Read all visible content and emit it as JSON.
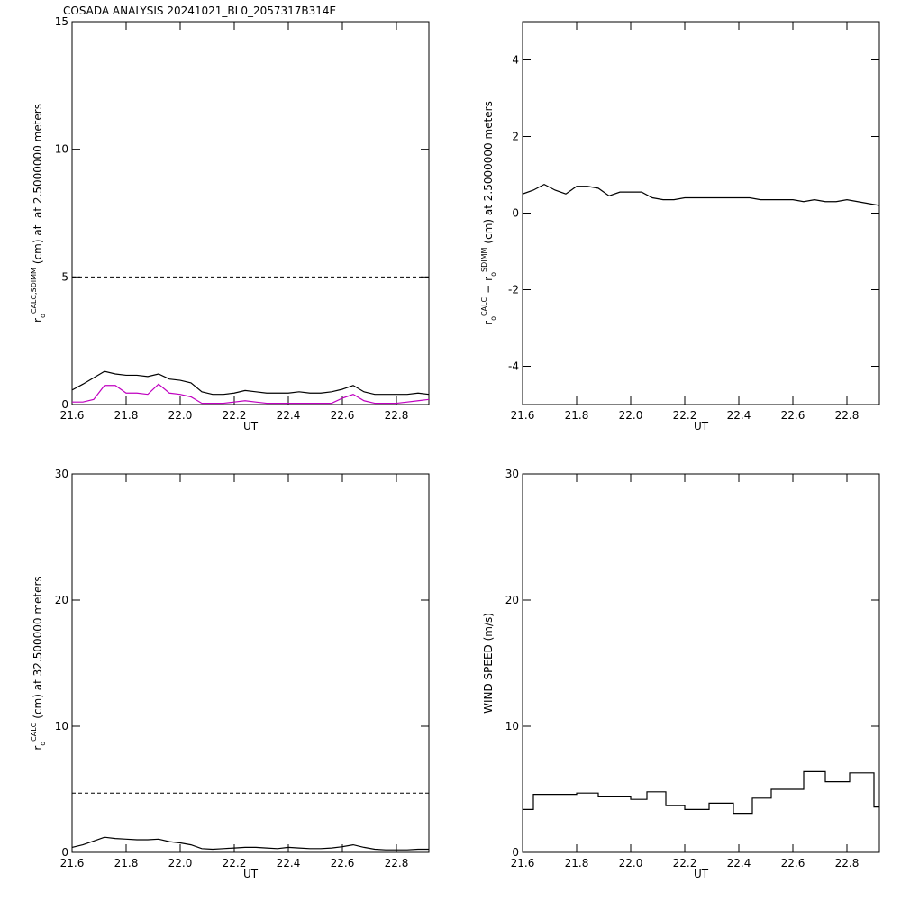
{
  "chart_data": [
    {
      "type": "line",
      "title": "COSADA ANALYSIS 20241021_BL0_2057317B314E",
      "xlabel": "UT",
      "ylabel": [
        {
          "text": "r"
        },
        {
          "text": "o",
          "pos": "sub"
        },
        {
          "text": "CALC,SDIMM",
          "pos": "sup"
        },
        {
          "text": "(cm) at  at 2.5000000 meters"
        }
      ],
      "x": [
        21.6,
        21.64,
        21.68,
        21.72,
        21.76,
        21.8,
        21.84,
        21.88,
        21.92,
        21.96,
        22.0,
        22.04,
        22.08,
        22.12,
        22.16,
        22.2,
        22.24,
        22.28,
        22.32,
        22.36,
        22.4,
        22.44,
        22.48,
        22.52,
        22.56,
        22.6,
        22.64,
        22.68,
        22.72,
        22.76,
        22.8,
        22.84,
        22.88,
        22.92
      ],
      "series": [
        {
          "color": "#000000",
          "values": [
            0.57,
            0.8,
            1.05,
            1.3,
            1.2,
            1.15,
            1.15,
            1.1,
            1.2,
            1.0,
            0.95,
            0.85,
            0.5,
            0.4,
            0.4,
            0.45,
            0.55,
            0.5,
            0.45,
            0.45,
            0.45,
            0.5,
            0.45,
            0.45,
            0.5,
            0.6,
            0.75,
            0.5,
            0.4,
            0.4,
            0.4,
            0.4,
            0.45,
            0.4
          ]
        },
        {
          "color": "#c000c0",
          "values": [
            0.1,
            0.1,
            0.2,
            0.75,
            0.75,
            0.45,
            0.45,
            0.4,
            0.8,
            0.45,
            0.4,
            0.3,
            0.05,
            0.05,
            0.05,
            0.1,
            0.15,
            0.1,
            0.05,
            0.05,
            0.05,
            0.05,
            0.05,
            0.05,
            0.05,
            0.25,
            0.4,
            0.15,
            0.05,
            0.05,
            0.05,
            0.1,
            0.15,
            0.2
          ]
        }
      ],
      "reference_line": 5,
      "xlim": [
        21.6,
        22.92
      ],
      "xticks": [
        21.6,
        21.8,
        {
          "value": 22,
          "label": "22.0"
        },
        22.2,
        22.4,
        22.6,
        22.8
      ],
      "ylim": [
        0,
        15
      ],
      "yticks": [
        0,
        5,
        10,
        15
      ]
    },
    {
      "type": "line",
      "xlabel": "UT",
      "ylabel": [
        {
          "text": "r"
        },
        {
          "text": "o",
          "pos": "sub"
        },
        {
          "text": "CALC",
          "pos": "sup"
        },
        {
          "text": "−"
        },
        {
          "text": "r"
        },
        {
          "text": "o",
          "pos": "sub"
        },
        {
          "text": "SDIMM",
          "pos": "sup"
        },
        {
          "text": "(cm) at 2.5000000 meters"
        }
      ],
      "x": [
        21.6,
        21.64,
        21.68,
        21.72,
        21.76,
        21.8,
        21.84,
        21.88,
        21.92,
        21.96,
        22.0,
        22.04,
        22.08,
        22.12,
        22.16,
        22.2,
        22.24,
        22.28,
        22.32,
        22.36,
        22.4,
        22.44,
        22.48,
        22.52,
        22.56,
        22.6,
        22.64,
        22.68,
        22.72,
        22.76,
        22.8,
        22.84,
        22.88,
        22.92
      ],
      "series": [
        {
          "color": "#000000",
          "values": [
            0.5,
            0.6,
            0.75,
            0.6,
            0.5,
            0.7,
            0.7,
            0.65,
            0.45,
            0.55,
            0.55,
            0.55,
            0.4,
            0.35,
            0.35,
            0.4,
            0.4,
            0.4,
            0.4,
            0.4,
            0.4,
            0.4,
            0.35,
            0.35,
            0.35,
            0.35,
            0.3,
            0.35,
            0.3,
            0.3,
            0.35,
            0.3,
            0.25,
            0.2
          ]
        }
      ],
      "xlim": [
        21.6,
        22.92
      ],
      "xticks": [
        21.6,
        21.8,
        {
          "value": 22,
          "label": "22.0"
        },
        22.2,
        22.4,
        22.6,
        22.8
      ],
      "ylim": [
        -5,
        5
      ],
      "yticks": [
        -4,
        -2,
        0,
        2,
        4
      ]
    },
    {
      "type": "line",
      "xlabel": "UT",
      "ylabel": [
        {
          "text": "r"
        },
        {
          "text": "o",
          "pos": "sub"
        },
        {
          "text": "CALC",
          "pos": "sup"
        },
        {
          "text": "(cm) at 32.500000 meters"
        }
      ],
      "x": [
        21.6,
        21.64,
        21.68,
        21.72,
        21.76,
        21.8,
        21.84,
        21.88,
        21.92,
        21.96,
        22.0,
        22.04,
        22.08,
        22.12,
        22.16,
        22.2,
        22.24,
        22.28,
        22.32,
        22.36,
        22.4,
        22.44,
        22.48,
        22.52,
        22.56,
        22.6,
        22.64,
        22.68,
        22.72,
        22.76,
        22.8,
        22.84,
        22.88,
        22.92
      ],
      "series": [
        {
          "color": "#000000",
          "values": [
            0.4,
            0.6,
            0.9,
            1.2,
            1.1,
            1.05,
            1.0,
            1.0,
            1.05,
            0.85,
            0.75,
            0.6,
            0.3,
            0.25,
            0.3,
            0.35,
            0.4,
            0.4,
            0.35,
            0.3,
            0.4,
            0.35,
            0.3,
            0.3,
            0.35,
            0.45,
            0.6,
            0.4,
            0.25,
            0.2,
            0.2,
            0.2,
            0.25,
            0.25
          ]
        }
      ],
      "reference_line": 4.7,
      "xlim": [
        21.6,
        22.92
      ],
      "xticks": [
        21.6,
        21.8,
        {
          "value": 22,
          "label": "22.0"
        },
        22.2,
        22.4,
        22.6,
        22.8
      ],
      "ylim": [
        0,
        30
      ],
      "yticks": [
        0,
        10,
        20,
        30
      ]
    },
    {
      "type": "line",
      "step": true,
      "xlabel": "UT",
      "ylabel": [
        {
          "text": "WIND SPEED (m/s)"
        }
      ],
      "x": [
        21.6,
        21.64,
        21.8,
        21.88,
        22.0,
        22.06,
        22.13,
        22.2,
        22.29,
        22.38,
        22.45,
        22.52,
        22.64,
        22.72,
        22.81,
        22.9
      ],
      "series": [
        {
          "color": "#000000",
          "values": [
            3.4,
            4.6,
            4.7,
            4.4,
            4.2,
            4.8,
            3.7,
            3.4,
            3.9,
            3.1,
            4.3,
            5.0,
            6.4,
            5.6,
            6.3,
            3.6
          ]
        }
      ],
      "xlim": [
        21.6,
        22.92
      ],
      "xticks": [
        21.6,
        21.8,
        {
          "value": 22,
          "label": "22.0"
        },
        22.2,
        22.4,
        22.6,
        22.8
      ],
      "ylim": [
        0,
        30
      ],
      "yticks": [
        0,
        10,
        20,
        30
      ]
    }
  ]
}
